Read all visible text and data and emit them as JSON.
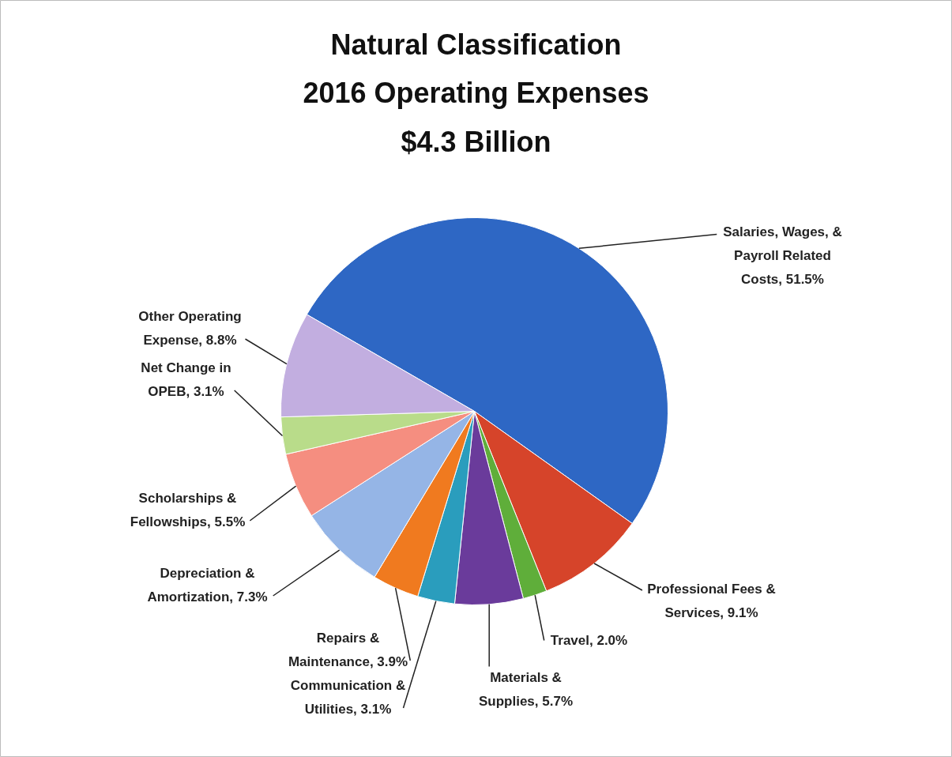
{
  "chart_data": {
    "type": "pie",
    "title": "Natural Classification\n2016 Operating Expenses\n$4.3 Billion",
    "categories": [
      "Salaries, Wages, & Payroll Related Costs",
      "Professional Fees & Services",
      "Travel",
      "Materials & Supplies",
      "Communication & Utilities",
      "Repairs & Maintenance",
      "Depreciation & Amortization",
      "Scholarships & Fellowships",
      "Net Change in OPEB",
      "Other Operating Expense"
    ],
    "values": [
      51.5,
      9.1,
      2.0,
      5.7,
      3.1,
      3.9,
      7.3,
      5.5,
      3.1,
      8.8
    ],
    "value_labels": [
      "51.5%",
      "9.1%",
      "2.0%",
      "5.7%",
      "3.1%",
      "3.9%",
      "7.3%",
      "5.5%",
      "3.1%",
      "8.8%"
    ],
    "colors": [
      "#2e67c4",
      "#d6442a",
      "#5fae3a",
      "#6a3b9b",
      "#2a9dbd",
      "#f07a1f",
      "#95b5e6",
      "#f58e80",
      "#b9dc8a",
      "#c2aee0"
    ]
  }
}
